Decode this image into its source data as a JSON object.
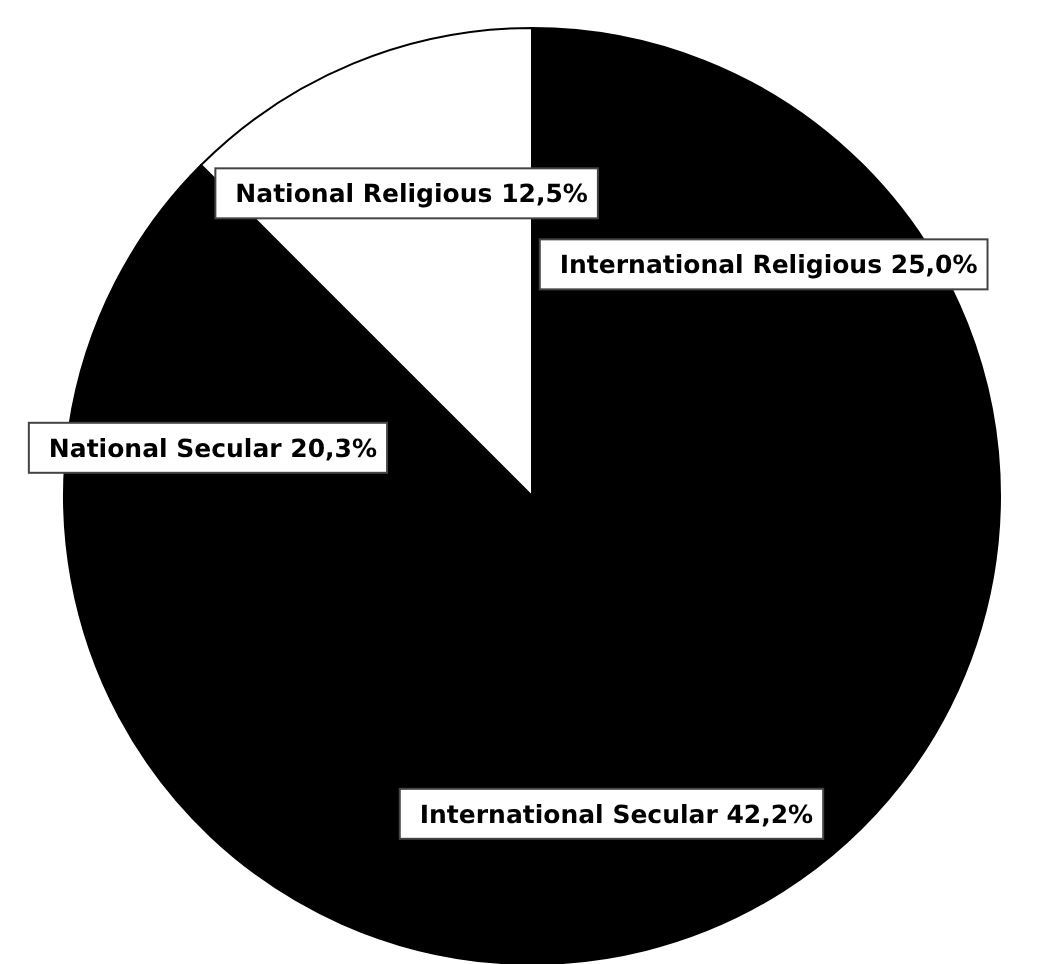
{
  "chart_data": {
    "type": "pie",
    "categories": [
      "International Religious",
      "International Secular",
      "National Secular",
      "National Religious"
    ],
    "values": [
      25.0,
      42.2,
      20.3,
      12.5
    ],
    "colors": [
      "#000000",
      "#000000",
      "#000000",
      "#ffffff"
    ],
    "value_labels": [
      "25,0%",
      "42,2%",
      "20,3%",
      "12,5%"
    ]
  }
}
